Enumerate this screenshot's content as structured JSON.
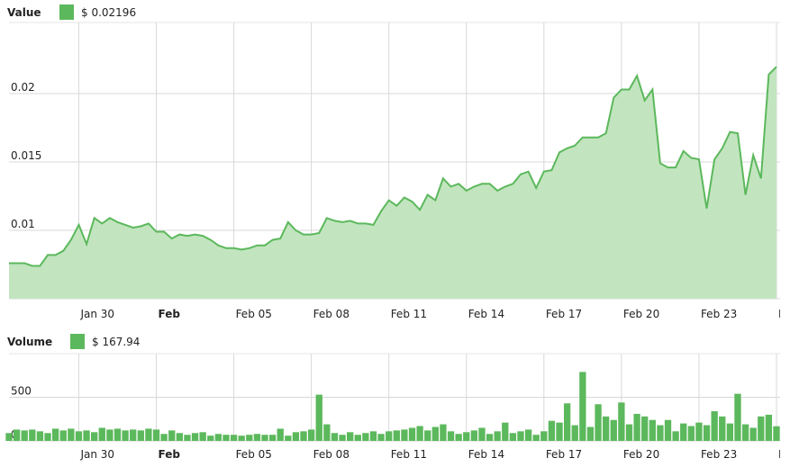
{
  "chart_data": [
    {
      "type": "area",
      "title": "Value",
      "legend_value": "$ 0.02196",
      "series": [
        {
          "name": "Value",
          "color": "#5cb85c",
          "fill": "#c2e5bf",
          "values": [
            0.0076,
            0.0076,
            0.0076,
            0.0074,
            0.0074,
            0.0082,
            0.0082,
            0.0085,
            0.0093,
            0.0104,
            0.009,
            0.0109,
            0.0105,
            0.0109,
            0.0106,
            0.0104,
            0.0102,
            0.0103,
            0.0105,
            0.0099,
            0.0099,
            0.0094,
            0.0097,
            0.0096,
            0.0097,
            0.0096,
            0.0093,
            0.0089,
            0.0087,
            0.0087,
            0.0086,
            0.0087,
            0.0089,
            0.0089,
            0.0093,
            0.0094,
            0.0106,
            0.01,
            0.0097,
            0.0097,
            0.0098,
            0.0109,
            0.0107,
            0.0106,
            0.0107,
            0.0105,
            0.0105,
            0.0104,
            0.0114,
            0.0122,
            0.0118,
            0.0124,
            0.0121,
            0.0115,
            0.0126,
            0.0122,
            0.0138,
            0.0132,
            0.0134,
            0.0129,
            0.0132,
            0.0134,
            0.0134,
            0.0129,
            0.0132,
            0.0134,
            0.0141,
            0.0143,
            0.0131,
            0.0143,
            0.0144,
            0.0157,
            0.016,
            0.0162,
            0.0168,
            0.0168,
            0.0168,
            0.0171,
            0.0197,
            0.0203,
            0.0203,
            0.0213,
            0.0195,
            0.0203,
            0.0149,
            0.0146,
            0.0146,
            0.0158,
            0.0153,
            0.0152,
            0.0116,
            0.0152,
            0.016,
            0.0172,
            0.0171,
            0.0126,
            0.0155,
            0.0138,
            0.0214,
            0.02196
          ]
        }
      ],
      "ylim": [
        0.005,
        0.0252
      ],
      "yticks": [
        0.005,
        0.01,
        0.015,
        0.02
      ],
      "xlim": [
        0,
        99
      ],
      "xticks": [
        {
          "value": 9,
          "label": "Jan 30"
        },
        {
          "value": 19,
          "label": "Feb"
        },
        {
          "value": 29,
          "label": "Feb 05"
        },
        {
          "value": 39,
          "label": "Feb 08"
        },
        {
          "value": 49,
          "label": "Feb 11"
        },
        {
          "value": 59,
          "label": "Feb 14"
        },
        {
          "value": 69,
          "label": "Feb 17"
        },
        {
          "value": 79,
          "label": "Feb 20"
        },
        {
          "value": 89,
          "label": "Feb 23"
        },
        {
          "value": 99,
          "label": "F"
        }
      ],
      "grid": true
    },
    {
      "type": "bar",
      "title": "Volume",
      "legend_value": "$ 167.94",
      "series": [
        {
          "name": "Volume",
          "color": "#5cb85c",
          "values": [
            90,
            130,
            120,
            130,
            110,
            90,
            140,
            120,
            140,
            110,
            120,
            100,
            150,
            130,
            140,
            120,
            130,
            120,
            140,
            130,
            80,
            120,
            90,
            70,
            90,
            100,
            60,
            80,
            70,
            70,
            60,
            70,
            80,
            70,
            70,
            140,
            60,
            100,
            110,
            130,
            530,
            190,
            90,
            70,
            100,
            70,
            90,
            110,
            80,
            110,
            120,
            130,
            150,
            170,
            120,
            160,
            190,
            110,
            80,
            100,
            120,
            150,
            80,
            110,
            210,
            90,
            110,
            130,
            70,
            110,
            230,
            210,
            430,
            180,
            790,
            160,
            420,
            280,
            240,
            440,
            190,
            310,
            280,
            240,
            180,
            240,
            110,
            200,
            170,
            210,
            180,
            340,
            280,
            200,
            540,
            190,
            150,
            280,
            300,
            167.94
          ]
        }
      ],
      "ylim": [
        0,
        1000
      ],
      "yticks": [
        0,
        500
      ],
      "xlim": [
        0,
        99
      ],
      "xticks": [
        {
          "value": 9,
          "label": "Jan 30"
        },
        {
          "value": 19,
          "label": "Feb"
        },
        {
          "value": 29,
          "label": "Feb 05"
        },
        {
          "value": 39,
          "label": "Feb 08"
        },
        {
          "value": 49,
          "label": "Feb 11"
        },
        {
          "value": 59,
          "label": "Feb 14"
        },
        {
          "value": 69,
          "label": "Feb 17"
        },
        {
          "value": 79,
          "label": "Feb 20"
        },
        {
          "value": 89,
          "label": "Feb 23"
        },
        {
          "value": 99,
          "label": "F"
        }
      ],
      "grid": true
    }
  ]
}
